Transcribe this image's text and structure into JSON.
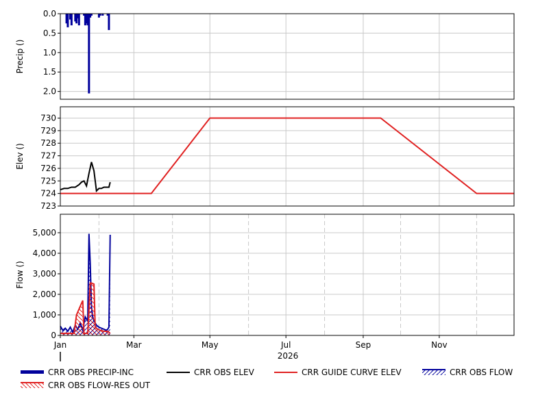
{
  "chart_data": [
    {
      "type": "bar",
      "ylabel": "Precip ()",
      "ylim": [
        0,
        2.2
      ],
      "y_inverted": true,
      "yticks": [
        "0.0",
        "0.5",
        "1.0",
        "1.5",
        "2.0"
      ],
      "ytick_values": [
        0,
        0.5,
        1.0,
        1.5,
        2.0
      ],
      "grid": true,
      "series": [
        {
          "name": "CRR OBS PRECIP-INC",
          "color": "#00009c",
          "x": [
            "2026-01-06",
            "2026-01-07",
            "2026-01-09",
            "2026-01-10",
            "2026-01-13",
            "2026-01-14",
            "2026-01-15",
            "2026-01-16",
            "2026-01-20",
            "2026-01-21",
            "2026-01-22",
            "2026-01-23",
            "2026-01-24",
            "2026-01-25",
            "2026-01-26",
            "2026-02-01",
            "2026-02-02",
            "2026-02-04",
            "2026-02-08",
            "2026-02-09"
          ],
          "values": [
            0.25,
            0.35,
            0.15,
            0.3,
            0.2,
            0.25,
            0.12,
            0.3,
            0.05,
            0.3,
            0.25,
            0.3,
            2.05,
            0.1,
            0.05,
            0.1,
            0.05,
            0.05,
            0.05,
            0.42
          ]
        }
      ]
    },
    {
      "type": "line",
      "ylabel": "Elev ()",
      "ylim": [
        723,
        730.9
      ],
      "yticks": [
        "723",
        "724",
        "725",
        "726",
        "727",
        "728",
        "729",
        "730"
      ],
      "ytick_values": [
        723,
        724,
        725,
        726,
        727,
        728,
        729,
        730
      ],
      "grid": true,
      "series": [
        {
          "name": "CRR OBS ELEV",
          "color": "#000000",
          "x": [
            "2026-01-01",
            "2026-01-04",
            "2026-01-07",
            "2026-01-10",
            "2026-01-13",
            "2026-01-16",
            "2026-01-18",
            "2026-01-20",
            "2026-01-22",
            "2026-01-24",
            "2026-01-26",
            "2026-01-28",
            "2026-01-30",
            "2026-02-01",
            "2026-02-03",
            "2026-02-05",
            "2026-02-07",
            "2026-02-09",
            "2026-02-10"
          ],
          "values": [
            724.3,
            724.4,
            724.4,
            724.5,
            724.5,
            724.7,
            724.9,
            725.0,
            724.6,
            725.6,
            726.5,
            725.8,
            724.2,
            724.4,
            724.4,
            724.5,
            724.5,
            724.5,
            724.9
          ]
        },
        {
          "name": "CRR GUIDE CURVE ELEV",
          "color": "#e02020",
          "x": [
            "2026-01-01",
            "2026-03-15",
            "2026-05-01",
            "2026-09-15",
            "2026-12-01",
            "2026-12-31"
          ],
          "values": [
            724,
            724,
            730,
            730,
            724,
            724
          ]
        }
      ]
    },
    {
      "type": "area",
      "ylabel": "Flow ()",
      "ylim": [
        0,
        5900
      ],
      "yticks": [
        "0",
        "1,000",
        "2,000",
        "3,000",
        "4,000",
        "5,000"
      ],
      "ytick_values": [
        0,
        1000,
        2000,
        3000,
        4000,
        5000
      ],
      "grid": true,
      "series": [
        {
          "name": "CRR OBS FLOW",
          "color": "#00009c",
          "hatch": "///",
          "x": [
            "2026-01-01",
            "2026-01-03",
            "2026-01-05",
            "2026-01-07",
            "2026-01-09",
            "2026-01-11",
            "2026-01-13",
            "2026-01-15",
            "2026-01-17",
            "2026-01-19",
            "2026-01-21",
            "2026-01-23",
            "2026-01-24",
            "2026-01-25",
            "2026-01-26",
            "2026-01-27",
            "2026-01-28",
            "2026-01-30",
            "2026-02-01",
            "2026-02-03",
            "2026-02-05",
            "2026-02-07",
            "2026-02-08",
            "2026-02-09",
            "2026-02-10"
          ],
          "values": [
            450,
            250,
            350,
            200,
            400,
            150,
            500,
            300,
            600,
            250,
            900,
            700,
            4950,
            3500,
            1400,
            900,
            700,
            500,
            400,
            350,
            300,
            250,
            300,
            400,
            4900
          ]
        },
        {
          "name": "CRR OBS FLOW-RES OUT",
          "color": "#e02020",
          "hatch": "\\\\\\",
          "x": [
            "2026-01-01",
            "2026-01-12",
            "2026-01-14",
            "2026-01-19",
            "2026-01-20",
            "2026-01-21",
            "2026-01-23",
            "2026-01-25",
            "2026-01-26",
            "2026-01-28",
            "2026-01-29",
            "2026-01-31",
            "2026-02-02",
            "2026-02-05",
            "2026-02-08",
            "2026-02-10"
          ],
          "values": [
            100,
            100,
            1000,
            1700,
            100,
            100,
            100,
            2550,
            2550,
            2500,
            400,
            300,
            250,
            200,
            200,
            100
          ]
        }
      ]
    }
  ],
  "x_axis": {
    "tick_labels": [
      "Jan",
      "Mar",
      "May",
      "Jul",
      "Sep",
      "Nov"
    ],
    "tick_dates": [
      "2026-01-01",
      "2026-03-01",
      "2026-05-01",
      "2026-07-01",
      "2026-09-01",
      "2026-11-01"
    ],
    "minor_dates": [
      "2026-02-01",
      "2026-04-01",
      "2026-06-01",
      "2026-08-01",
      "2026-10-01",
      "2026-12-01"
    ],
    "range": [
      "2026-01-01",
      "2026-12-31"
    ],
    "year_label": "2026",
    "today_marker": "2026-01-01"
  },
  "legend": [
    {
      "label": "CRR OBS PRECIP-INC",
      "style": "thick",
      "color": "#00009c"
    },
    {
      "label": "CRR OBS ELEV",
      "style": "line",
      "color": "#000000"
    },
    {
      "label": "CRR GUIDE CURVE ELEV",
      "style": "line",
      "color": "#e02020"
    },
    {
      "label": "CRR OBS FLOW",
      "style": "hatch",
      "color": "#00009c"
    },
    {
      "label": "CRR OBS FLOW-RES OUT",
      "style": "hatch",
      "color": "#e02020"
    }
  ]
}
